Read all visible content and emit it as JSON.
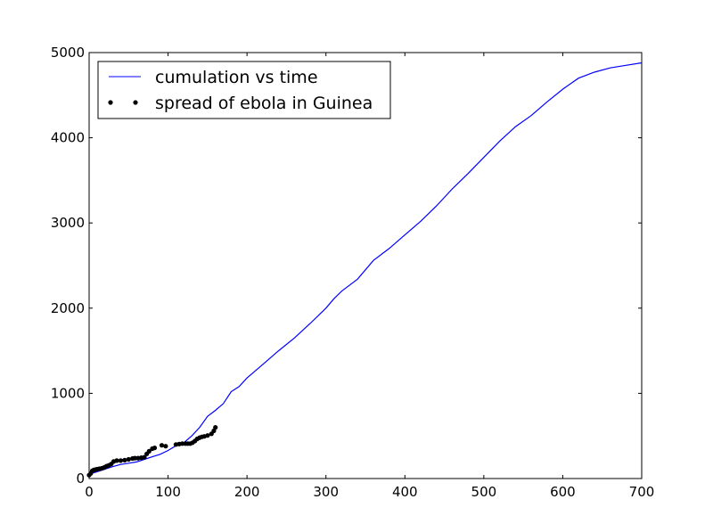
{
  "chart_data": {
    "type": "line",
    "title": "",
    "xlabel": "",
    "ylabel": "",
    "xlim": [
      0,
      700
    ],
    "ylim": [
      0,
      5000
    ],
    "x_ticks": [
      0,
      100,
      200,
      300,
      400,
      500,
      600,
      700
    ],
    "y_ticks": [
      0,
      1000,
      2000,
      3000,
      4000,
      5000
    ],
    "grid": false,
    "legend_position": "upper-left",
    "series": [
      {
        "name": "cumulation vs time",
        "style": "line",
        "color": "#0000ff",
        "x": [
          0,
          10,
          20,
          30,
          40,
          50,
          60,
          70,
          80,
          90,
          100,
          110,
          120,
          130,
          140,
          150,
          160,
          170,
          180,
          190,
          200,
          220,
          240,
          260,
          280,
          300,
          310,
          320,
          340,
          360,
          380,
          400,
          420,
          440,
          460,
          480,
          500,
          520,
          540,
          560,
          580,
          600,
          620,
          640,
          660,
          680,
          700
        ],
        "y": [
          50,
          80,
          110,
          140,
          165,
          180,
          195,
          225,
          255,
          285,
          330,
          385,
          420,
          500,
          600,
          730,
          800,
          880,
          1020,
          1080,
          1180,
          1340,
          1500,
          1650,
          1820,
          2000,
          2110,
          2200,
          2340,
          2560,
          2700,
          2860,
          3020,
          3200,
          3400,
          3580,
          3770,
          3960,
          4130,
          4260,
          4420,
          4570,
          4700,
          4770,
          4820,
          4850,
          4880
        ]
      },
      {
        "name": "spread of ebola in Guinea",
        "style": "points",
        "color": "#000000",
        "x": [
          0,
          2,
          4,
          6,
          8,
          10,
          13,
          16,
          19,
          22,
          25,
          28,
          31,
          35,
          40,
          45,
          50,
          55,
          58,
          62,
          66,
          70,
          73,
          76,
          80,
          83,
          92,
          97,
          110,
          114,
          118,
          122,
          125,
          128,
          131,
          134,
          137,
          140,
          143,
          146,
          150,
          155,
          158,
          160
        ],
        "y": [
          40,
          60,
          90,
          100,
          105,
          110,
          115,
          120,
          130,
          145,
          155,
          170,
          200,
          210,
          210,
          215,
          225,
          235,
          240,
          240,
          245,
          250,
          290,
          320,
          350,
          360,
          390,
          380,
          400,
          405,
          410,
          410,
          410,
          410,
          420,
          440,
          465,
          480,
          490,
          495,
          505,
          525,
          560,
          600
        ]
      }
    ]
  }
}
